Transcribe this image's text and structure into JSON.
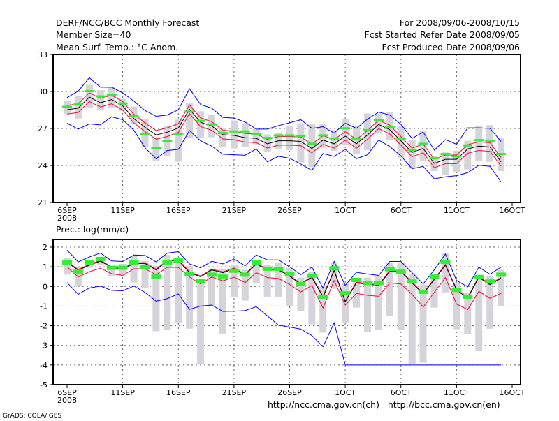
{
  "header": {
    "title": "DERF/NCC/BCC Monthly Forecast",
    "member_size": "Member Size=40",
    "period": "For 2008/09/06-2008/10/15",
    "started": "Fcst Started Refer Date 2008/09/05",
    "produced": "Fcst Produced Date 2008/09/06"
  },
  "footer": {
    "links": "http://ncc.cma.gov.cn(ch)   http://bcc.cma.gov.cn(en)",
    "credit": "GrADS: COLA/IGES"
  },
  "colors": {
    "mean": "#000000",
    "spread": "#ff0030",
    "extreme": "#0000ff",
    "obs": "#33ee33",
    "range": "#d4d4da"
  },
  "chart_data": [
    {
      "type": "line",
      "title": "Mean Surf. Temp.: °C Anom.",
      "x_ticks": [
        "6SEP",
        "11SEP",
        "16SEP",
        "21SEP",
        "26SEP",
        "1OCT",
        "6OCT",
        "11OCT",
        "16OCT"
      ],
      "x_sublabel": "2008",
      "ylim": [
        21,
        33
      ],
      "y_ticks": [
        21,
        24,
        27,
        30,
        33
      ],
      "grid": true,
      "series": [
        {
          "name": "ensemble-mean",
          "values": [
            28.52,
            28.65,
            29.54,
            29.09,
            29.35,
            28.84,
            27.8,
            27.1,
            26.48,
            26.7,
            27.04,
            28.56,
            27.5,
            27.2,
            26.5,
            26.44,
            26.25,
            26.2,
            25.76,
            26.0,
            26.0,
            25.95,
            25.38,
            26.06,
            25.76,
            26.38,
            25.76,
            26.48,
            27.33,
            26.9,
            26.0,
            25.06,
            25.38,
            24.17,
            24.5,
            24.5,
            25.34,
            25.57,
            25.5,
            24.3
          ]
        },
        {
          "name": "spread-upper",
          "values": [
            28.87,
            29.0,
            29.89,
            29.44,
            29.7,
            29.19,
            28.15,
            27.45,
            26.83,
            27.05,
            27.39,
            28.91,
            27.85,
            27.55,
            26.85,
            26.79,
            26.6,
            26.55,
            26.11,
            26.35,
            26.35,
            26.3,
            25.73,
            26.41,
            26.11,
            26.73,
            26.11,
            26.83,
            27.68,
            27.25,
            26.35,
            25.41,
            25.73,
            24.52,
            24.85,
            24.85,
            25.69,
            25.92,
            25.85,
            24.65
          ]
        },
        {
          "name": "spread-lower",
          "values": [
            28.17,
            28.3,
            29.19,
            28.74,
            29.0,
            28.49,
            27.45,
            26.75,
            26.13,
            26.35,
            26.69,
            28.21,
            27.15,
            26.85,
            26.15,
            26.09,
            25.9,
            25.85,
            25.41,
            25.65,
            25.65,
            25.6,
            25.03,
            25.71,
            25.41,
            26.03,
            25.41,
            26.13,
            26.98,
            26.55,
            25.65,
            24.71,
            25.03,
            23.82,
            24.15,
            24.15,
            24.99,
            25.22,
            25.15,
            23.95
          ]
        },
        {
          "name": "max",
          "values": [
            29.5,
            30.03,
            31.11,
            30.35,
            30.35,
            29.88,
            29.22,
            28.46,
            27.99,
            28.09,
            28.52,
            30.22,
            28.94,
            28.65,
            27.9,
            27.84,
            27.52,
            26.95,
            26.95,
            27.23,
            27.46,
            27.71,
            27.01,
            27.14,
            26.63,
            27.42,
            27.01,
            27.76,
            28.33,
            28.09,
            27.33,
            26.19,
            26.71,
            25.25,
            26.1,
            25.72,
            27.05,
            27.05,
            27.01,
            25.95
          ]
        },
        {
          "name": "min",
          "values": [
            27.42,
            26.95,
            27.37,
            27.29,
            27.95,
            27.71,
            26.86,
            25.44,
            24.55,
            25.21,
            25.31,
            26.82,
            26.0,
            25.57,
            24.91,
            24.87,
            24.83,
            25.34,
            24.3,
            24.74,
            24.59,
            24.12,
            23.6,
            24.97,
            24.74,
            25.31,
            24.55,
            24.87,
            26.06,
            25.53,
            24.78,
            23.74,
            23.93,
            22.92,
            23.08,
            23.17,
            23.42,
            24.02,
            23.93,
            22.66
          ]
        },
        {
          "name": "observed",
          "values": [
            28.75,
            28.94,
            30.03,
            29.6,
            29.73,
            29.03,
            27.99,
            26.57,
            25.44,
            26.0,
            26.53,
            28.37,
            27.61,
            27.33,
            26.63,
            26.76,
            26.76,
            26.57,
            26.23,
            26.44,
            26.44,
            26.38,
            25.76,
            26.44,
            26.19,
            27.01,
            26.19,
            26.86,
            27.65,
            27.08,
            26.19,
            25.25,
            25.76,
            24.59,
            24.93,
            24.74,
            25.63,
            26.06,
            26.0,
            24.93
          ]
        }
      ],
      "ranges": [
        [
          28.18,
          29.22
        ],
        [
          27.8,
          29.6
        ],
        [
          28.65,
          30.54
        ],
        [
          28.46,
          30.1
        ],
        [
          28.65,
          30.35
        ],
        [
          28.4,
          29.4
        ],
        [
          27.33,
          28.78
        ],
        [
          25.53,
          27.8
        ],
        [
          24.4,
          26.29
        ],
        [
          24.74,
          27.23
        ],
        [
          24.3,
          27.71
        ],
        [
          26.23,
          29.03
        ],
        [
          26.23,
          28.4
        ],
        [
          26.29,
          28.09
        ],
        [
          25.53,
          27.05
        ],
        [
          25.38,
          27.65
        ],
        [
          25.53,
          27.42
        ],
        [
          25.72,
          26.95
        ],
        [
          25.1,
          26.52
        ],
        [
          25.31,
          26.67
        ],
        [
          25.25,
          27.23
        ],
        [
          24.25,
          27.42
        ],
        [
          23.87,
          27.33
        ],
        [
          25.44,
          27.33
        ],
        [
          25.19,
          26.86
        ],
        [
          25.63,
          27.74
        ],
        [
          24.93,
          27.23
        ],
        [
          25.25,
          28.22
        ],
        [
          26.57,
          28.22
        ],
        [
          26.06,
          28.31
        ],
        [
          24.63,
          27.23
        ],
        [
          23.74,
          26.1
        ],
        [
          24.36,
          26.82
        ],
        [
          23.55,
          24.78
        ],
        [
          23.23,
          25.06
        ],
        [
          23.45,
          25.19
        ],
        [
          23.68,
          26.0
        ],
        [
          24.4,
          27.23
        ],
        [
          24.3,
          27.27
        ],
        [
          23.55,
          26.19
        ]
      ]
    },
    {
      "type": "line",
      "title": "Prec.: log(mm/d)",
      "x_ticks": [
        "6SEP",
        "11SEP",
        "16SEP",
        "21SEP",
        "26SEP",
        "1OCT",
        "6OCT",
        "11OCT",
        "16OCT"
      ],
      "x_sublabel": "2008",
      "ylim": [
        -5,
        2
      ],
      "y_ticks": [
        -5,
        -4,
        -3,
        -2,
        -1,
        0,
        1,
        2
      ],
      "grid": true,
      "series": [
        {
          "name": "ensemble-mean",
          "values": [
            1.23,
            0.82,
            1.08,
            1.29,
            0.96,
            0.88,
            1.17,
            1.17,
            0.84,
            1.29,
            1.33,
            0.7,
            0.49,
            0.84,
            0.7,
            0.9,
            0.58,
            1.14,
            0.84,
            0.84,
            0.52,
            0.11,
            0.46,
            -0.54,
            0.8,
            -0.78,
            0.18,
            0.11,
            0.05,
            0.76,
            0.76,
            0.18,
            -0.38,
            0.35,
            1.08,
            -0.18,
            -0.6,
            0.46,
            0.09,
            0.41
          ]
        },
        {
          "name": "spread-upper",
          "values": [
            1.27,
            0.86,
            1.12,
            1.33,
            1.0,
            0.92,
            1.21,
            1.21,
            0.88,
            1.33,
            1.37,
            0.74,
            0.53,
            0.88,
            0.74,
            0.94,
            0.62,
            1.18,
            0.88,
            0.88,
            0.56,
            0.15,
            0.5,
            -0.5,
            0.84,
            -0.74,
            0.22,
            0.15,
            0.09,
            0.8,
            0.8,
            0.22,
            -0.34,
            0.39,
            1.12,
            -0.14,
            -0.56,
            0.5,
            0.13,
            0.45
          ]
        },
        {
          "name": "spread-lower",
          "values": [
            1.0,
            0.48,
            0.75,
            0.93,
            0.65,
            0.56,
            0.9,
            0.9,
            0.6,
            0.97,
            0.97,
            0.48,
            0.13,
            0.48,
            0.28,
            0.47,
            0.2,
            0.7,
            0.45,
            0.4,
            0.1,
            -0.28,
            0.05,
            -1.1,
            0.3,
            -0.95,
            -0.35,
            -0.45,
            -0.5,
            0.18,
            0.12,
            -0.4,
            -1.05,
            -0.3,
            0.45,
            -0.9,
            -1.18,
            -0.25,
            -0.6,
            -0.35
          ]
        },
        {
          "name": "max",
          "values": [
            1.85,
            1.25,
            1.5,
            1.7,
            1.3,
            1.27,
            1.6,
            1.58,
            1.25,
            1.7,
            1.77,
            1.15,
            0.95,
            1.28,
            1.15,
            1.4,
            1.05,
            1.6,
            1.35,
            1.35,
            1.0,
            0.6,
            0.98,
            -0.08,
            1.27,
            0.05,
            0.72,
            0.63,
            0.56,
            1.27,
            1.27,
            0.7,
            0.13,
            0.85,
            1.65,
            0.3,
            -0.02,
            0.98,
            0.62,
            0.98
          ]
        },
        {
          "name": "min",
          "values": [
            0.2,
            -0.4,
            -0.08,
            0.02,
            -0.2,
            -0.22,
            0.02,
            -0.3,
            -0.75,
            -0.62,
            -0.38,
            -1.17,
            -1.0,
            -0.95,
            -1.27,
            -1.26,
            -1.23,
            -1.03,
            -1.5,
            -1.97,
            -2.07,
            -2.17,
            -2.5,
            -3.07,
            -1.85,
            -4,
            -4,
            -4,
            -4,
            -4,
            -4,
            -4,
            -4,
            -4,
            -4,
            -4,
            -4,
            -4,
            -4,
            -4
          ]
        },
        {
          "name": "observed",
          "values": [
            1.22,
            0.75,
            1.22,
            1.4,
            0.95,
            0.95,
            1.22,
            0.97,
            0.5,
            1.22,
            1.32,
            0.65,
            0.28,
            0.6,
            0.5,
            0.8,
            0.6,
            1.22,
            0.9,
            0.9,
            0.65,
            0.13,
            0.55,
            -0.52,
            0.92,
            -0.35,
            0.33,
            0.17,
            0.17,
            0.88,
            0.75,
            0.25,
            -0.27,
            0.5,
            1.25,
            -0.18,
            -0.52,
            0.48,
            0.25,
            0.6
          ]
        }
      ],
      "ranges": [
        [
          0.6,
          1.45
        ],
        [
          0.0,
          1.0
        ],
        [
          0.95,
          1.3
        ],
        [
          1.1,
          1.5
        ],
        [
          0.5,
          1.05
        ],
        [
          0.55,
          1.15
        ],
        [
          0.2,
          1.55
        ],
        [
          -0.07,
          1.3
        ],
        [
          -2.28,
          1.05
        ],
        [
          -2.2,
          1.6
        ],
        [
          -1.85,
          1.45
        ],
        [
          -2.15,
          1.05
        ],
        [
          -3.95,
          0.4
        ],
        [
          -1.0,
          0.85
        ],
        [
          -2.4,
          0.9
        ],
        [
          -0.55,
          1.1
        ],
        [
          -0.72,
          0.85
        ],
        [
          0.15,
          1.35
        ],
        [
          -0.52,
          1.1
        ],
        [
          -0.52,
          1.2
        ],
        [
          -1.0,
          0.95
        ],
        [
          -1.25,
          0.45
        ],
        [
          -1.93,
          0.75
        ],
        [
          -2.35,
          0.0
        ],
        [
          -0.12,
          1.2
        ],
        [
          -1.85,
          0.15
        ],
        [
          -1.08,
          0.45
        ],
        [
          -2.3,
          0.45
        ],
        [
          -2.2,
          0.55
        ],
        [
          -1.5,
          1.2
        ],
        [
          -2.2,
          1.2
        ],
        [
          -3.95,
          0.65
        ],
        [
          -3.88,
          0.1
        ],
        [
          -1.08,
          0.65
        ],
        [
          -0.3,
          1.7
        ],
        [
          -2.18,
          0.2
        ],
        [
          -2.42,
          -0.3
        ],
        [
          -3.3,
          0.6
        ],
        [
          -2.15,
          0.55
        ],
        [
          -1.0,
          0.85
        ]
      ]
    }
  ]
}
